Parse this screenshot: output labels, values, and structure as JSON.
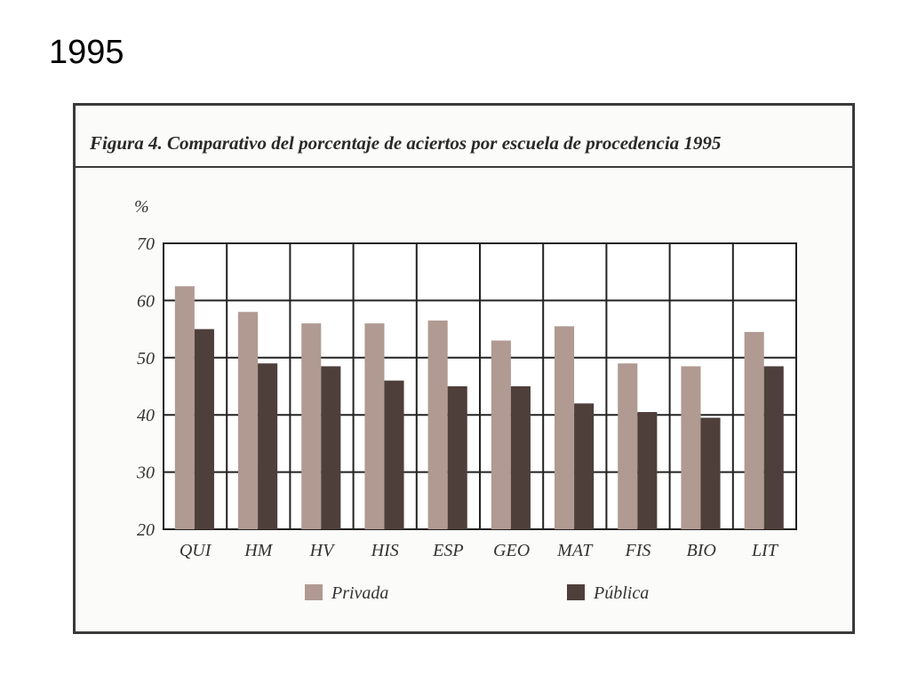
{
  "slide": {
    "title": "1995"
  },
  "chart_data": {
    "type": "bar",
    "title": "Figura 4. Comparativo del porcentaje de aciertos por escuela de procedencia 1995",
    "ylabel": "%",
    "xlabel": "",
    "ylim": [
      20,
      70
    ],
    "yticks": [
      20,
      30,
      40,
      50,
      60,
      70
    ],
    "grid": true,
    "legend_position": "bottom",
    "categories": [
      "QUI",
      "HM",
      "HV",
      "HIS",
      "ESP",
      "GEO",
      "MAT",
      "FIS",
      "BIO",
      "LIT"
    ],
    "series": [
      {
        "name": "Privada",
        "color": "#b09a91",
        "values": [
          62.5,
          58,
          56,
          56,
          56.5,
          53,
          55.5,
          49,
          48.5,
          54.5
        ]
      },
      {
        "name": "Pública",
        "color": "#4e3f3b",
        "values": [
          55,
          49,
          48.5,
          46,
          45,
          45,
          42,
          40.5,
          39.5,
          48.5
        ]
      }
    ]
  }
}
